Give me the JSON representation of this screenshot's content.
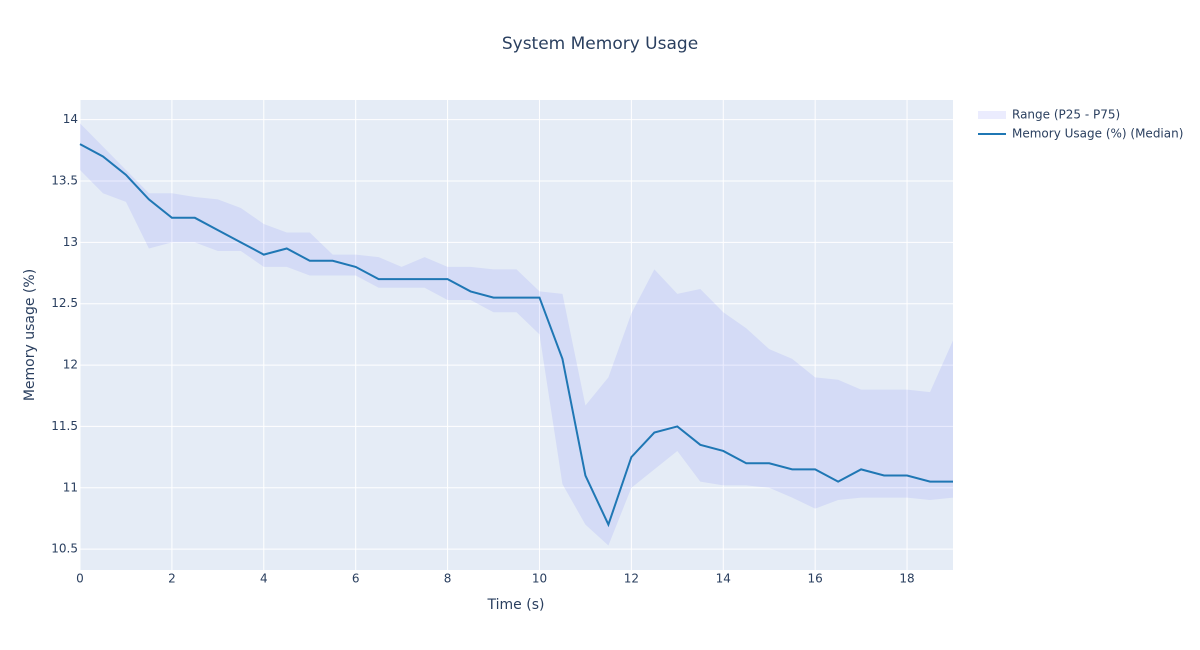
{
  "chart_data": {
    "type": "band-line",
    "title": "System Memory Usage",
    "x_label": "Time (s)",
    "y_label": "Memory usage (%)",
    "x": [
      0,
      0.5,
      1,
      1.5,
      2,
      2.5,
      3,
      3.5,
      4,
      4.5,
      5,
      5.5,
      6,
      6.5,
      7,
      7.5,
      8,
      8.5,
      9,
      9.5,
      10,
      10.5,
      11,
      11.5,
      12,
      12.5,
      13,
      13.5,
      14,
      14.5,
      15,
      15.5,
      16,
      16.5,
      17,
      17.5,
      18,
      18.5,
      19
    ],
    "band": {
      "name": "Range (P25 - P75)",
      "color": "rgba(99,110,250,0.13)",
      "upper": [
        13.97,
        13.78,
        13.59,
        13.4,
        13.4,
        13.37,
        13.35,
        13.28,
        13.15,
        13.08,
        13.08,
        12.9,
        12.9,
        12.88,
        12.8,
        12.88,
        12.8,
        12.8,
        12.78,
        12.78,
        12.6,
        12.58,
        11.67,
        11.9,
        12.42,
        12.78,
        12.58,
        12.62,
        12.43,
        12.3,
        12.13,
        12.05,
        11.9,
        11.88,
        11.8,
        11.8,
        11.8,
        11.78,
        12.2
      ],
      "lower": [
        13.59,
        13.4,
        13.33,
        12.95,
        13.0,
        13.0,
        12.93,
        12.93,
        12.8,
        12.8,
        12.73,
        12.73,
        12.73,
        12.63,
        12.63,
        12.63,
        12.53,
        12.53,
        12.43,
        12.43,
        12.25,
        11.03,
        10.7,
        10.53,
        11.0,
        11.15,
        11.3,
        11.05,
        11.02,
        11.02,
        11.0,
        10.92,
        10.83,
        10.9,
        10.92,
        10.92,
        10.92,
        10.9,
        10.92
      ]
    },
    "series": [
      {
        "name": "Memory Usage (%) (Median)",
        "color": "#1f77b4",
        "values": [
          13.8,
          13.7,
          13.55,
          13.35,
          13.2,
          13.2,
          13.1,
          13.0,
          12.9,
          12.95,
          12.85,
          12.85,
          12.8,
          12.7,
          12.7,
          12.7,
          12.7,
          12.6,
          12.55,
          12.55,
          12.55,
          12.05,
          11.1,
          10.7,
          11.25,
          11.45,
          11.5,
          11.35,
          11.3,
          11.2,
          11.2,
          11.15,
          11.15,
          11.05,
          11.15,
          11.1,
          11.1,
          11.05,
          11.05
        ]
      }
    ],
    "xlim": [
      0,
      19
    ],
    "ylim": [
      10.33,
      14.16
    ],
    "xticks": [
      0,
      2,
      4,
      6,
      8,
      10,
      12,
      14,
      16,
      18
    ],
    "yticks": [
      10.5,
      11,
      11.5,
      12,
      12.5,
      13,
      13.5,
      14
    ],
    "grid": true,
    "plot_bgcolor": "#e5ecf6"
  }
}
